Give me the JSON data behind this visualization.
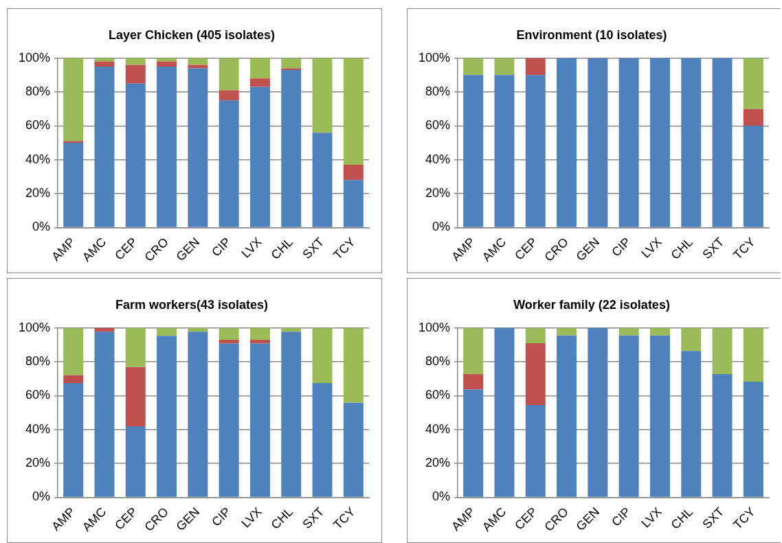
{
  "chart_data": [
    {
      "type": "bar",
      "title": "Layer Chicken (405 isolates)",
      "stacked": true,
      "grid": "y",
      "legend": false,
      "categories": [
        "AMP",
        "AMC",
        "CEP",
        "CRO",
        "GEN",
        "CIP",
        "LVX",
        "CHL",
        "SXT",
        "TCY"
      ],
      "series": [
        {
          "color": "#4f81bd",
          "values": [
            50,
            95,
            85,
            95,
            94,
            75,
            83,
            93,
            56,
            28
          ]
        },
        {
          "color": "#c0504d",
          "values": [
            1,
            3,
            11,
            3,
            2,
            6,
            5,
            1,
            0,
            9
          ]
        },
        {
          "color": "#9bbb59",
          "values": [
            49,
            2,
            4,
            2,
            4,
            19,
            12,
            6,
            44,
            63
          ]
        }
      ],
      "ylim": [
        0,
        100
      ],
      "yticks": [
        {
          "value": 0,
          "label": "0%"
        },
        {
          "value": 20,
          "label": "20%"
        },
        {
          "value": 40,
          "label": "40%"
        },
        {
          "value": 60,
          "label": "60%"
        },
        {
          "value": 80,
          "label": "80%"
        },
        {
          "value": 100,
          "label": "100%"
        }
      ]
    },
    {
      "type": "bar",
      "title": "Environment (10 isolates)",
      "stacked": true,
      "grid": "y",
      "legend": false,
      "categories": [
        "AMP",
        "AMC",
        "CEP",
        "CRO",
        "GEN",
        "CIP",
        "LVX",
        "CHL",
        "SXT",
        "TCY"
      ],
      "series": [
        {
          "color": "#4f81bd",
          "values": [
            90,
            90,
            90,
            100,
            100,
            100,
            100,
            100,
            100,
            60
          ]
        },
        {
          "color": "#c0504d",
          "values": [
            0,
            0,
            10,
            0,
            0,
            0,
            0,
            0,
            0,
            10
          ]
        },
        {
          "color": "#9bbb59",
          "values": [
            10,
            10,
            0,
            0,
            0,
            0,
            0,
            0,
            0,
            30
          ]
        }
      ],
      "ylim": [
        0,
        100
      ],
      "yticks": [
        {
          "value": 0,
          "label": "0%"
        },
        {
          "value": 20,
          "label": "20%"
        },
        {
          "value": 40,
          "label": "40%"
        },
        {
          "value": 60,
          "label": "60%"
        },
        {
          "value": 80,
          "label": "80%"
        },
        {
          "value": 100,
          "label": "100%"
        }
      ]
    },
    {
      "type": "bar",
      "title": "Farm workers(43 isolates)",
      "stacked": true,
      "grid": "y",
      "legend": false,
      "categories": [
        "AMP",
        "AMC",
        "CEP",
        "CRO",
        "GEN",
        "CIP",
        "LVX",
        "CHL",
        "SXT",
        "TCY"
      ],
      "series": [
        {
          "color": "#4f81bd",
          "values": [
            67.4,
            97.7,
            41.9,
            95.3,
            97.7,
            90.7,
            90.7,
            97.7,
            67.4,
            55.8
          ]
        },
        {
          "color": "#c0504d",
          "values": [
            4.7,
            2.3,
            34.9,
            0,
            0,
            2.3,
            2.3,
            0,
            0,
            0
          ]
        },
        {
          "color": "#9bbb59",
          "values": [
            27.9,
            0,
            23.3,
            4.7,
            2.3,
            7.0,
            7.0,
            2.3,
            32.6,
            44.2
          ]
        }
      ],
      "ylim": [
        0,
        100
      ],
      "yticks": [
        {
          "value": 0,
          "label": "0%"
        },
        {
          "value": 20,
          "label": "20%"
        },
        {
          "value": 40,
          "label": "40%"
        },
        {
          "value": 60,
          "label": "60%"
        },
        {
          "value": 80,
          "label": "80%"
        },
        {
          "value": 100,
          "label": "100%"
        }
      ]
    },
    {
      "type": "bar",
      "title": "Worker family (22 isolates)",
      "stacked": true,
      "grid": "y",
      "legend": false,
      "categories": [
        "AMP",
        "AMC",
        "CEP",
        "CRO",
        "GEN",
        "CIP",
        "LVX",
        "CHL",
        "SXT",
        "TCY"
      ],
      "series": [
        {
          "color": "#4f81bd",
          "values": [
            63.6,
            100,
            54.5,
            95.5,
            100,
            95.5,
            95.5,
            86.4,
            72.7,
            68.2
          ]
        },
        {
          "color": "#c0504d",
          "values": [
            9.1,
            0,
            36.4,
            0,
            0,
            0,
            0,
            0,
            0,
            0
          ]
        },
        {
          "color": "#9bbb59",
          "values": [
            27.3,
            0,
            9.1,
            4.5,
            0,
            4.5,
            4.5,
            13.6,
            27.3,
            31.8
          ]
        }
      ],
      "ylim": [
        0,
        100
      ],
      "yticks": [
        {
          "value": 0,
          "label": "0%"
        },
        {
          "value": 20,
          "label": "20%"
        },
        {
          "value": 40,
          "label": "40%"
        },
        {
          "value": 60,
          "label": "60%"
        },
        {
          "value": 80,
          "label": "80%"
        },
        {
          "value": 100,
          "label": "100%"
        }
      ]
    }
  ]
}
